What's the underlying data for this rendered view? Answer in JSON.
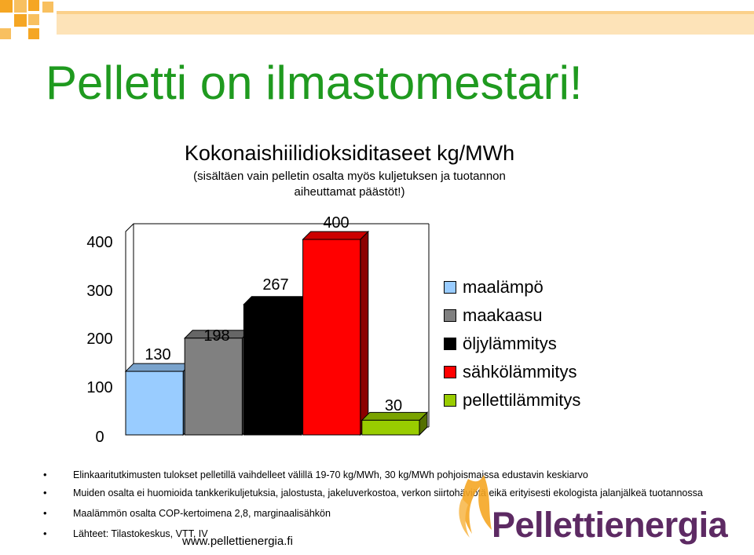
{
  "slide": {
    "title": "Pelletti on ilmastomestari!",
    "bullets": [
      "Elinkaaritutkimusten tulokset pelletillä vaihdelleet välillä 19-70 kg/MWh, 30 kg/MWh pohjoismaissa edustavin keskiarvo",
      "Muiden osalta ei huomioida tankkerikuljetuksia, jalostusta, jakeluverkostoa, verkon siirtohäviötä eikä erityisesti ekologista jalanjälkeä tuotannossa",
      "Maalämmön osalta COP-kertoimena 2,8, marginaalisähkön",
      "Lähteet: Tilastokeskus, VTT, IV"
    ],
    "website": "www.pellettienergia.fi",
    "logo_text": "Pellettienergia"
  },
  "colors": {
    "title_green": "#1f9a1f",
    "logo_purple": "#5d2a63",
    "logo_orange": "#f5a623"
  },
  "chart_data": {
    "type": "bar",
    "title": "Kokonaishiilidioksiditaseet kg/MWh",
    "subtitle_line1": "(sisältäen vain pelletin osalta myös kuljetuksen ja tuotannon",
    "subtitle_line2": "aiheuttamat päästöt!)",
    "categories": [
      "maalämpö",
      "maakaasu",
      "öljylämmitys",
      "sähkölämmitys",
      "pellettilämmitys"
    ],
    "values": [
      130,
      198,
      267,
      400,
      30
    ],
    "colors": [
      "#99ccff",
      "#808080",
      "#000000",
      "#ff0000",
      "#99cc00"
    ],
    "yticks": [
      0,
      100,
      200,
      300,
      400
    ],
    "ylim": [
      0,
      400
    ],
    "legend_position": "right",
    "grid": false,
    "three_d": true
  }
}
